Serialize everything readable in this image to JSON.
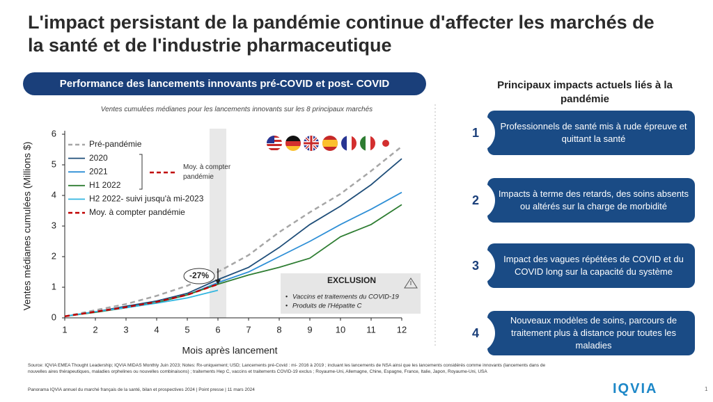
{
  "title": "L'impact persistant de la pandémie continue d'affecter les marchés de la santé et de l'industrie pharmaceutique",
  "chart_data": {
    "type": "line",
    "title": "Performance des lancements innovants pré-COVID et post- COVID",
    "subtitle": "Ventes cumulées médianes pour les lancements innovants sur les 8 principaux marchés",
    "x_label": "Mois après lancement",
    "y_label": "Ventes médianes cumulées (Millions $)",
    "x": [
      1,
      2,
      3,
      4,
      5,
      6,
      7,
      8,
      9,
      10,
      11,
      12
    ],
    "xlim": [
      1,
      12
    ],
    "xticks": [
      1,
      2,
      3,
      4,
      5,
      6,
      7,
      8,
      9,
      10,
      11,
      12
    ],
    "ylim": [
      0,
      6
    ],
    "yticks": [
      0,
      1,
      2,
      3,
      4,
      5,
      6
    ],
    "grid": false,
    "highlight_x": 6,
    "series": [
      {
        "name": "Pré-pandémie",
        "color": "#a6a6a6",
        "dashed": true,
        "values": [
          0.05,
          0.25,
          0.45,
          0.72,
          1.05,
          1.5,
          2.05,
          2.8,
          3.45,
          4.05,
          4.8,
          5.6
        ]
      },
      {
        "name": "2020",
        "color": "#1f4e79",
        "dashed": false,
        "values": [
          0.05,
          0.2,
          0.38,
          0.55,
          0.8,
          1.25,
          1.65,
          2.3,
          3.05,
          3.65,
          4.35,
          5.2
        ]
      },
      {
        "name": "2021",
        "color": "#2e8fd6",
        "dashed": false,
        "values": [
          0.05,
          0.2,
          0.35,
          0.5,
          0.75,
          1.15,
          1.5,
          2.0,
          2.5,
          3.05,
          3.55,
          4.1
        ]
      },
      {
        "name": "H1 2022",
        "color": "#2e7d32",
        "dashed": false,
        "values": [
          0.05,
          0.18,
          0.33,
          0.5,
          0.75,
          1.1,
          1.4,
          1.65,
          1.95,
          2.65,
          3.05,
          3.7
        ]
      },
      {
        "name": "H2 2022- suivi jusqu'à mi-2023",
        "color": "#33b6e0",
        "dashed": false,
        "values": [
          0.05,
          0.2,
          0.33,
          0.48,
          0.65,
          0.9,
          null,
          null,
          null,
          null,
          null,
          null
        ]
      },
      {
        "name": "Moy. à compter pandémie",
        "color": "#c00000",
        "dashed": true,
        "values": [
          0.05,
          0.2,
          0.35,
          0.52,
          0.75,
          1.1,
          null,
          null,
          null,
          null,
          null,
          null
        ]
      }
    ],
    "bracket_label": "Moy. à compter pandémie",
    "drop_annotation": {
      "text": "-27%",
      "x": 6
    },
    "exclusion": {
      "title": "EXCLUSION",
      "items": [
        "Vaccins et traitements du COVID-19",
        "Produits  de l'Hépatite C"
      ]
    }
  },
  "impacts": {
    "title": "Principaux impacts actuels liés à la pandémie",
    "items": [
      {
        "number": 1,
        "text": "Professionnels de santé mis à rude épreuve et quittant la santé"
      },
      {
        "number": 2,
        "text": "Impacts à terme des retards, des soins absents ou altérés sur la charge de morbidité"
      },
      {
        "number": 3,
        "text": "Impact des vagues répétées de COVID et du COVID long sur la capacité du système"
      },
      {
        "number": 4,
        "text": "Nouveaux modèles de soins, parcours de traitement plus à distance pour toutes les maladies"
      }
    ]
  },
  "footer": {
    "source": "Source: IQVIA EMEA Thought Leadership; IQVIA MIDAS Monthly Juin 2023; Notes: Rx-uniquement; USD; Lancements pré-Covid : mi- 2016 à 2019 ; incluant les lancements de NSA ainsi que les lancements considérés comme innovants (lancements dans de nouvelles aires thérapeutiques, maladies orphelines ou nouvelles combinaisons) ; traitements Hep C, vaccins et traitements COVID-19 exclus ; Royaume-Uni, Allemagne, Chine, Espagne, France, Italie, Japon, Royaume-Uni, USA",
    "panorama": "Panorama IQVIA annuel du marché français de la santé, bilan et prospectives 2024 | Point presse | 11 mars 2024",
    "logo": "IQVIA",
    "page": 1
  }
}
